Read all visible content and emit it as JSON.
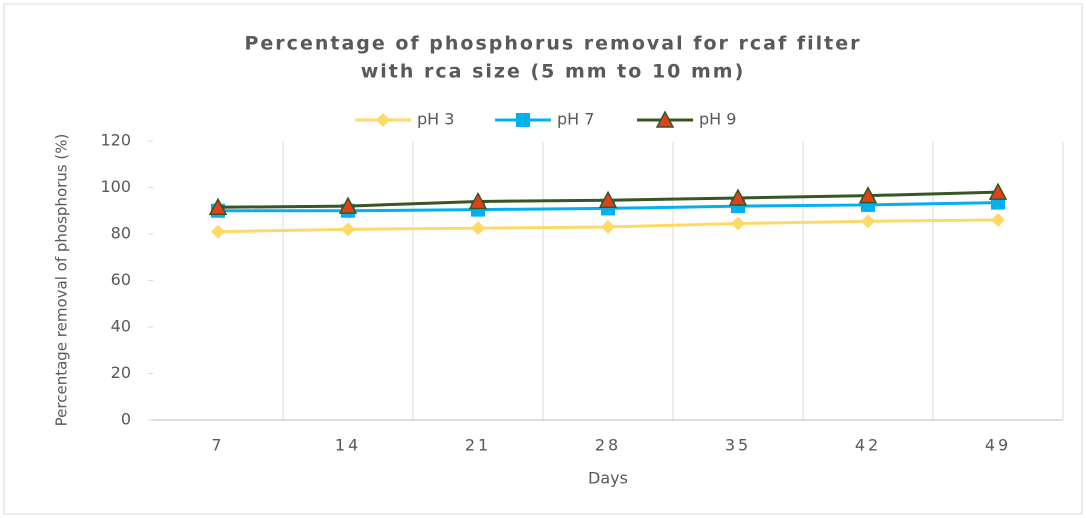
{
  "chart_data": {
    "type": "line",
    "title": [
      "Percentage of phosphorus removal for rcaf filter",
      "with rca size (5 mm to 10 mm)"
    ],
    "x_label": "Days",
    "y_label": "Percentage removal of phosphorus (%)",
    "categories": [
      "7",
      "14",
      "21",
      "28",
      "35",
      "42",
      "49"
    ],
    "series": [
      {
        "name": "pH 3",
        "color": "#ffd966",
        "marker": "diamond",
        "values": [
          81,
          82,
          82.5,
          83,
          84.5,
          85.5,
          86
        ]
      },
      {
        "name": "pH 7",
        "color": "#00b0f0",
        "marker": "square",
        "values": [
          90,
          90,
          90.5,
          91,
          92,
          92.5,
          93.5
        ]
      },
      {
        "name": "pH 9",
        "color": "#375623",
        "marker": "triangle",
        "marker_color": "#e0401a",
        "values": [
          91.5,
          92,
          94,
          94.5,
          95.5,
          96.5,
          98
        ]
      }
    ],
    "ylim": [
      0,
      120
    ],
    "yticks": [
      0,
      20,
      40,
      60,
      80,
      100,
      120
    ],
    "grid": "vertical",
    "legend": "top"
  }
}
